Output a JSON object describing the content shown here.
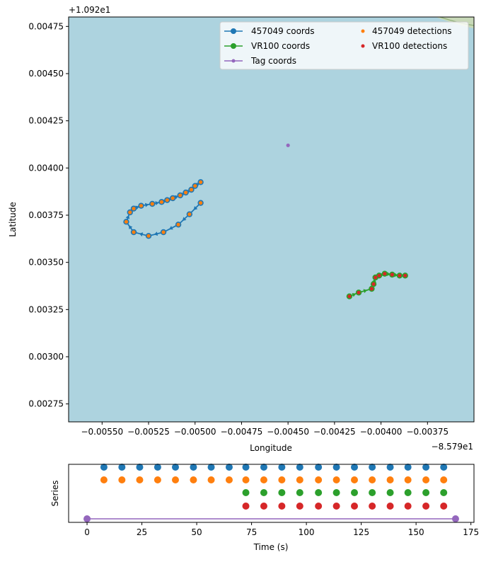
{
  "chart_data": [
    {
      "type": "scatter",
      "xlabel": "Longitude",
      "ylabel": "Latitude",
      "x_offset_label": "−8.579e1",
      "y_offset_label": "+1.092e1",
      "x_offset": -85.79,
      "y_offset": 10.92,
      "xlim": [
        -0.00568,
        -0.0035
      ],
      "ylim": [
        0.002655,
        0.0048
      ],
      "x_ticks": [
        -0.0055,
        -0.00525,
        -0.005,
        -0.00475,
        -0.0045,
        -0.00425,
        -0.004,
        -0.00375
      ],
      "x_tick_labels": [
        "−0.00550",
        "−0.00525",
        "−0.00500",
        "−0.00475",
        "−0.00450",
        "−0.00425",
        "−0.00400",
        "−0.00375"
      ],
      "y_ticks": [
        0.00275,
        0.003,
        0.00325,
        0.0035,
        0.00375,
        0.004,
        0.00425,
        0.0045,
        0.00475
      ],
      "y_tick_labels": [
        "0.00275",
        "0.00300",
        "0.00325",
        "0.00350",
        "0.00375",
        "0.00400",
        "0.00425",
        "0.00450",
        "0.00475"
      ],
      "background_color": "#add3df",
      "legend": {
        "placement": "top-right",
        "columns": 2,
        "entries": [
          {
            "label": "457049 coords",
            "color": "#1f77b4",
            "style": "line-marker"
          },
          {
            "label": "457049 detections",
            "color": "#ff7f0e",
            "style": "marker"
          },
          {
            "label": "VR100 coords",
            "color": "#2ca02c",
            "style": "line-marker"
          },
          {
            "label": "VR100 detections",
            "color": "#d62728",
            "style": "marker"
          },
          {
            "label": "Tag coords",
            "color": "#9467bd",
            "style": "line-small-marker"
          }
        ]
      },
      "series": [
        {
          "name": "457049 coords",
          "color": "#1f77b4",
          "x": [
            -0.00497,
            -0.00503,
            -0.00509,
            -0.00517,
            -0.00525,
            -0.00533,
            -0.00537,
            -0.00535,
            -0.00533,
            -0.00529,
            -0.00523,
            -0.00518,
            -0.00515,
            -0.00512,
            -0.00508,
            -0.00505,
            -0.00502,
            -0.005,
            -0.00497
          ],
          "y": [
            0.003815,
            0.003755,
            0.0037,
            0.00366,
            0.00364,
            0.00366,
            0.003715,
            0.003765,
            0.003785,
            0.0038,
            0.00381,
            0.00382,
            0.00383,
            0.00384,
            0.003855,
            0.00387,
            0.003885,
            0.003905,
            0.003925
          ]
        },
        {
          "name": "457049 detections",
          "color": "#ff7f0e",
          "x": [
            -0.00497,
            -0.00503,
            -0.00509,
            -0.00517,
            -0.00525,
            -0.00533,
            -0.00537,
            -0.00535,
            -0.00533,
            -0.00529,
            -0.00523,
            -0.00518,
            -0.00515,
            -0.00512,
            -0.00508,
            -0.00505,
            -0.00502,
            -0.005,
            -0.00497
          ],
          "y": [
            0.003815,
            0.003755,
            0.0037,
            0.00366,
            0.00364,
            0.00366,
            0.003715,
            0.003765,
            0.003785,
            0.0038,
            0.00381,
            0.00382,
            0.00383,
            0.00384,
            0.003855,
            0.00387,
            0.003885,
            0.003905,
            0.003925
          ]
        },
        {
          "name": "VR100 coords",
          "color": "#2ca02c",
          "x": [
            -0.00417,
            -0.00412,
            -0.00405,
            -0.00404,
            -0.00403,
            -0.00401,
            -0.00398,
            -0.00394,
            -0.0039,
            -0.00387
          ],
          "y": [
            0.00332,
            0.00334,
            0.00336,
            0.003385,
            0.00342,
            0.00343,
            0.00344,
            0.003435,
            0.00343,
            0.00343
          ]
        },
        {
          "name": "VR100 detections",
          "color": "#d62728",
          "x": [
            -0.00417,
            -0.00412,
            -0.00405,
            -0.00404,
            -0.00403,
            -0.00401,
            -0.00398,
            -0.00394,
            -0.0039,
            -0.00387
          ],
          "y": [
            0.00332,
            0.00334,
            0.00336,
            0.003385,
            0.00342,
            0.00343,
            0.00344,
            0.003435,
            0.00343,
            0.00343
          ]
        },
        {
          "name": "Tag coords",
          "color": "#9467bd",
          "x": [
            -0.0045
          ],
          "y": [
            0.00412
          ]
        }
      ]
    },
    {
      "type": "scatter",
      "xlabel": "Time (s)",
      "ylabel": "Series",
      "xlim": [
        -8.4,
        176.4
      ],
      "x_ticks": [
        0,
        25,
        50,
        75,
        100,
        125,
        150,
        175
      ],
      "x_tick_labels": [
        "0",
        "25",
        "50",
        "75",
        "100",
        "125",
        "150",
        "175"
      ],
      "rows": [
        {
          "color": "#1f77b4",
          "times": [
            7.7,
            15.9,
            24.0,
            32.2,
            40.3,
            48.5,
            56.6,
            64.8,
            72.4,
            80.6,
            88.8,
            97.0,
            105.5,
            113.7,
            121.9,
            130.0,
            138.2,
            146.3,
            154.5,
            162.6
          ]
        },
        {
          "color": "#ff7f0e",
          "times": [
            7.7,
            15.9,
            24.0,
            32.2,
            40.3,
            48.5,
            56.6,
            64.8,
            72.4,
            80.6,
            88.8,
            97.0,
            105.5,
            113.7,
            121.9,
            130.0,
            138.2,
            146.3,
            154.5,
            162.6
          ]
        },
        {
          "color": "#2ca02c",
          "times": [
            72.4,
            80.6,
            88.8,
            97.0,
            105.5,
            113.7,
            121.9,
            130.0,
            138.2,
            146.3,
            154.5,
            162.6
          ]
        },
        {
          "color": "#d62728",
          "times": [
            72.4,
            80.6,
            88.8,
            97.0,
            105.5,
            113.7,
            121.9,
            130.0,
            138.2,
            146.3,
            154.5,
            162.6
          ]
        },
        {
          "color": "#9467bd",
          "times": [
            0,
            168.0
          ],
          "line": true
        }
      ]
    }
  ]
}
